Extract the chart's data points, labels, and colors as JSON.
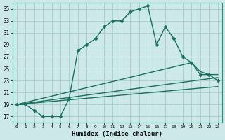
{
  "xlabel": "Humidex (Indice chaleur)",
  "background_color": "#cce8e8",
  "grid_color": "#aacccc",
  "line_color": "#1a7060",
  "xlim": [
    -0.5,
    23.5
  ],
  "ylim": [
    16,
    36
  ],
  "xticks": [
    0,
    1,
    2,
    3,
    4,
    5,
    6,
    7,
    8,
    9,
    10,
    11,
    12,
    13,
    14,
    15,
    16,
    17,
    18,
    19,
    20,
    21,
    22,
    23
  ],
  "yticks": [
    17,
    19,
    21,
    23,
    25,
    27,
    29,
    31,
    33,
    35
  ],
  "series1_x": [
    0,
    1,
    2,
    3,
    4,
    5,
    6,
    7,
    8,
    9,
    10,
    11,
    12,
    13,
    14,
    15,
    16,
    17,
    18,
    19,
    20,
    21,
    22,
    23
  ],
  "series1_y": [
    19,
    19,
    18,
    17,
    17,
    17,
    20,
    28,
    29,
    30,
    32,
    33,
    33,
    34.5,
    35,
    35.5,
    29,
    32,
    30,
    27,
    26,
    24,
    24,
    23
  ],
  "series2_x": [
    0,
    20,
    21,
    22,
    23
  ],
  "series2_y": [
    19,
    26,
    24.5,
    24,
    24
  ],
  "series3_x": [
    0,
    23
  ],
  "series3_y": [
    19,
    23.5
  ],
  "series4_x": [
    0,
    23
  ],
  "series4_y": [
    19,
    22
  ],
  "marker": "D",
  "markersize": 2.5,
  "linewidth": 1.0
}
